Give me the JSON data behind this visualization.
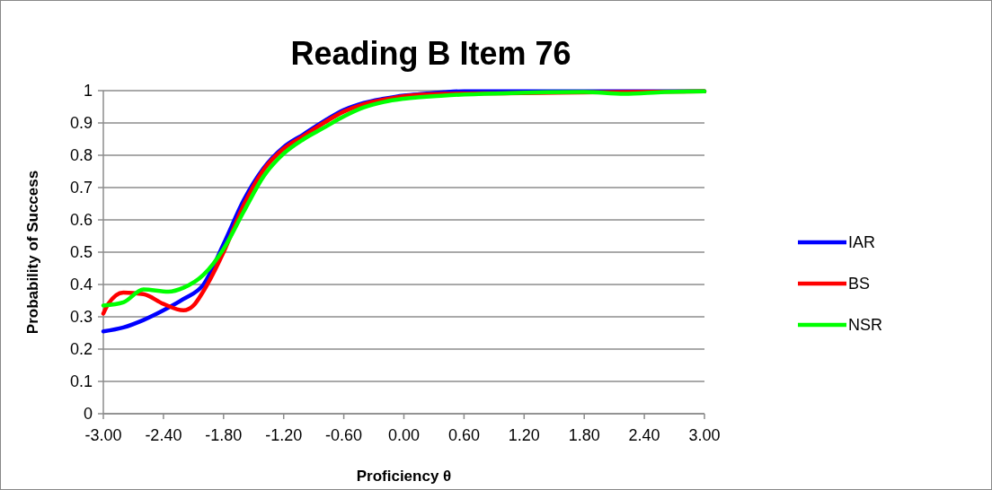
{
  "chart_data": {
    "type": "line",
    "title": "Reading B Item 76",
    "xlabel": "Proficiency θ",
    "ylabel": "Probability of Success",
    "xlim": [
      -3,
      3
    ],
    "ylim": [
      0,
      1
    ],
    "xticks": [
      {
        "value": -3,
        "label": "-3.00"
      },
      {
        "value": -2.4,
        "label": "-2.40"
      },
      {
        "value": -1.8,
        "label": "-1.80"
      },
      {
        "value": -1.2,
        "label": "-1.20"
      },
      {
        "value": -0.6,
        "label": "-0.60"
      },
      {
        "value": 0,
        "label": "0.00"
      },
      {
        "value": 0.6,
        "label": "0.60"
      },
      {
        "value": 1.2,
        "label": "1.20"
      },
      {
        "value": 1.8,
        "label": "1.80"
      },
      {
        "value": 2.4,
        "label": "2.40"
      },
      {
        "value": 3,
        "label": "3.00"
      }
    ],
    "yticks": [
      0,
      0.1,
      0.2,
      0.3,
      0.4,
      0.5,
      0.6,
      0.7,
      0.8,
      0.9,
      1
    ],
    "grid": "y",
    "legend": "right",
    "marker": "none",
    "line_style": "solid",
    "series": [
      {
        "name": "IAR",
        "color": "#0000ff",
        "x": [
          -3,
          -2.8,
          -2.6,
          -2.4,
          -2.2,
          -2,
          -1.8,
          -1.6,
          -1.4,
          -1.2,
          -1,
          -0.8,
          -0.6,
          -0.4,
          -0.2,
          0,
          0.2,
          0.4,
          0.6,
          1,
          1.6,
          2.2,
          3
        ],
        "values": [
          0.255,
          0.267,
          0.29,
          0.32,
          0.355,
          0.4,
          0.525,
          0.66,
          0.76,
          0.825,
          0.865,
          0.905,
          0.94,
          0.962,
          0.975,
          0.985,
          0.99,
          0.995,
          0.998,
          0.998,
          0.998,
          0.998,
          0.998
        ]
      },
      {
        "name": "BS",
        "color": "#ff0000",
        "x": [
          -3,
          -2.95,
          -2.8,
          -2.6,
          -2.4,
          -2.2,
          -2.1,
          -2,
          -1.8,
          -1.6,
          -1.4,
          -1.2,
          -1,
          -0.8,
          -0.6,
          -0.4,
          -0.2,
          0,
          0.4,
          1,
          2,
          3
        ],
        "values": [
          0.31,
          0.34,
          0.375,
          0.37,
          0.34,
          0.32,
          0.335,
          0.38,
          0.5,
          0.645,
          0.755,
          0.82,
          0.86,
          0.9,
          0.935,
          0.958,
          0.972,
          0.983,
          0.99,
          0.992,
          0.995,
          0.998
        ]
      },
      {
        "name": "NSR",
        "color": "#00ff00",
        "x": [
          -3,
          -2.8,
          -2.6,
          -2.35,
          -2.2,
          -2,
          -1.8,
          -1.6,
          -1.4,
          -1.2,
          -1,
          -0.8,
          -0.6,
          -0.4,
          -0.2,
          0,
          0.4,
          1,
          1.8,
          2.2,
          2.6,
          3
        ],
        "values": [
          0.335,
          0.345,
          0.385,
          0.378,
          0.39,
          0.43,
          0.51,
          0.625,
          0.735,
          0.805,
          0.85,
          0.885,
          0.92,
          0.948,
          0.965,
          0.975,
          0.985,
          0.992,
          0.996,
          0.99,
          0.996,
          0.998
        ]
      }
    ]
  }
}
